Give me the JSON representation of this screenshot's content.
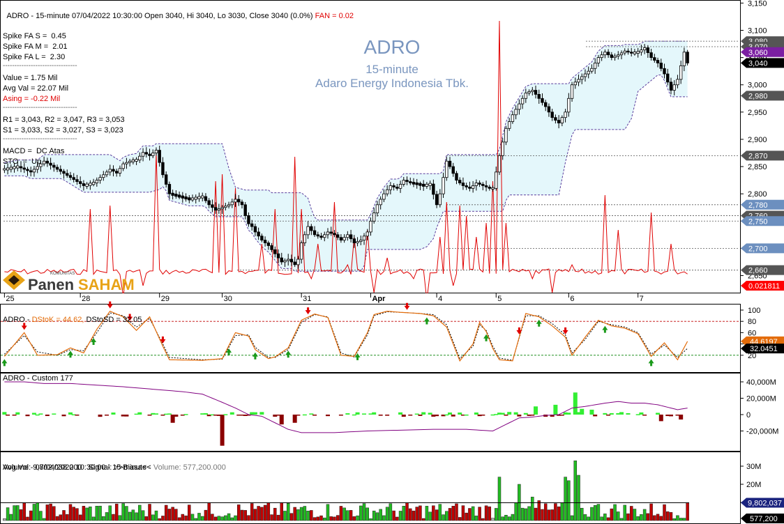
{
  "header": {
    "text": "ADRO - 15-minute 07/04/2022 10:30:00 Open 3040, Hi 3040, Lo 3030, Close 3040 (0.0%)",
    "fan": "FAN = 0.02"
  },
  "info": {
    "spike_s": "Spike FA S =  0.45",
    "spike_m": "Spike FA M =  2.01",
    "spike_l": "Spike FA L =  2.30",
    "separator": "--------------------------------",
    "value": "Value = 1.75 Mil",
    "avg_val": "Avg Val = 22.07 Mil",
    "asing": "Asing = -0.22 Mil",
    "r_levels": "R1 = 3,043, R2 = 3,047, R3 = 3,053",
    "s_levels": "S1 = 3,033, S2 = 3,027, S3 = 3,023",
    "macd": "MACD =  DC Atas",
    "sto": "STO  =  Up"
  },
  "watermark": {
    "ticker": "ADRO",
    "interval": "15-minute",
    "company": "Adaro Energy Indonesia Tbk."
  },
  "logo": {
    "small": "KOMUNITAS",
    "word1": "Panen",
    "word2": "SAHAM"
  },
  "colors": {
    "up_candle": "#ffffff",
    "down_candle": "#000000",
    "channel_fill": "#e4f7fb",
    "channel_line": "#5a3c9c",
    "fan_line": "#e00000",
    "stoch_k": "#e36c0a",
    "flow_line": "#800080",
    "vol_up": "#22bb22",
    "vol_down": "#c00000",
    "vol_neutral": "#b4b4b4",
    "level_label_bg": "#000000",
    "level_label_purple": "#7b1fa2",
    "level_label_blue": "#6c8fbf",
    "level_label_grey": "#555555"
  },
  "price_panel": {
    "axis_ticks": [
      "3,150",
      "3,100",
      "3,050",
      "3,000",
      "2,950",
      "2,900",
      "2,850",
      "2,800",
      "2,750",
      "2,700",
      "2,650"
    ],
    "level_labels": [
      {
        "text": "3,080",
        "style": "grey"
      },
      {
        "text": "3,070",
        "style": "grey"
      },
      {
        "text": "3,060",
        "style": "purple"
      },
      {
        "text": "3,040",
        "style": "black"
      },
      {
        "text": "2,980",
        "style": "grey"
      },
      {
        "text": "2,870",
        "style": "grey"
      },
      {
        "text": "2,780",
        "style": "blue"
      },
      {
        "text": "2,760",
        "style": "grey"
      },
      {
        "text": "2,750",
        "style": "blue"
      },
      {
        "text": "2,700",
        "style": "blue"
      },
      {
        "text": "2,660",
        "style": "grey"
      },
      {
        "text": "0.021811",
        "style": "red"
      }
    ]
  },
  "date_axis": [
    "25",
    "28",
    "29",
    "30",
    "31",
    "Apr",
    "4",
    "5",
    "6",
    "7"
  ],
  "stoch_panel": {
    "title_prefix": "ADRO - ",
    "title_k": "DStoK = 44.62,",
    "title_d": "DStoSD = 32.05",
    "axis_ticks": [
      "100",
      "80",
      "60",
      "40",
      "20"
    ],
    "k_label": "44.6197",
    "d_label": "32.0451"
  },
  "custom_panel": {
    "title": "ADRO - Custom 177",
    "axis_ticks": [
      "40,000M",
      "20,000M",
      "0",
      "-20,000M"
    ]
  },
  "volume_panel": {
    "title1": "Volume - 07/04/2022 10:30:00 - 15-minute",
    "title_vol": " - Volume: 577,200.000",
    "title2": "Avg.Vol: 9,802,038.000   Signal: >>Biasa<<",
    "axis_ticks": [
      "30M",
      "20M",
      "10M"
    ],
    "avg_label": "9,802,037",
    "vol_label": "577,200"
  },
  "chart_data": {
    "type": "candlestick",
    "title": "ADRO 15-minute",
    "ylim": [
      2645,
      3160
    ],
    "days": [
      "25",
      "28",
      "29",
      "30",
      "31",
      "Apr",
      "4",
      "5",
      "6",
      "7"
    ],
    "close_path": [
      [
        0,
        2845
      ],
      [
        4,
        2850
      ],
      [
        8,
        2840
      ],
      [
        12,
        2860
      ],
      [
        16,
        2845
      ],
      [
        20,
        2830
      ],
      [
        24,
        2815
      ],
      [
        27,
        2820
      ],
      [
        30,
        2835
      ],
      [
        32,
        2845
      ],
      [
        34,
        2838
      ],
      [
        36,
        2855
      ],
      [
        38,
        2860
      ],
      [
        40,
        2862
      ],
      [
        42,
        2876
      ],
      [
        44,
        2870
      ],
      [
        46,
        2880
      ],
      [
        48,
        2835
      ],
      [
        50,
        2800
      ],
      [
        53,
        2795
      ],
      [
        56,
        2790
      ],
      [
        60,
        2795
      ],
      [
        62,
        2780
      ],
      [
        64,
        2770
      ],
      [
        66,
        2775
      ],
      [
        68,
        2780
      ],
      [
        70,
        2790
      ],
      [
        72,
        2780
      ],
      [
        73,
        2760
      ],
      [
        74,
        2745
      ],
      [
        75,
        2740
      ],
      [
        76,
        2730
      ],
      [
        78,
        2715
      ],
      [
        80,
        2705
      ],
      [
        82,
        2690
      ],
      [
        84,
        2675
      ],
      [
        86,
        2680
      ],
      [
        88,
        2670
      ],
      [
        89,
        2680
      ],
      [
        90,
        2710
      ],
      [
        92,
        2740
      ],
      [
        94,
        2725
      ],
      [
        96,
        2720
      ],
      [
        98,
        2730
      ],
      [
        100,
        2725
      ],
      [
        102,
        2715
      ],
      [
        104,
        2725
      ],
      [
        106,
        2710
      ],
      [
        108,
        2715
      ],
      [
        110,
        2730
      ],
      [
        111,
        2750
      ],
      [
        113,
        2780
      ],
      [
        115,
        2800
      ],
      [
        117,
        2815
      ],
      [
        119,
        2810
      ],
      [
        121,
        2825
      ],
      [
        123,
        2820
      ],
      [
        125,
        2818
      ],
      [
        127,
        2815
      ],
      [
        129,
        2818
      ],
      [
        131,
        2780
      ],
      [
        132,
        2800
      ],
      [
        133,
        2830
      ],
      [
        134,
        2860
      ],
      [
        135,
        2850
      ],
      [
        137,
        2825
      ],
      [
        139,
        2815
      ],
      [
        141,
        2810
      ],
      [
        143,
        2820
      ],
      [
        145,
        2815
      ],
      [
        147,
        2810
      ],
      [
        148,
        2810
      ],
      [
        149,
        2840
      ],
      [
        150,
        2870
      ],
      [
        152,
        2920
      ],
      [
        154,
        2945
      ],
      [
        156,
        2965
      ],
      [
        158,
        2985
      ],
      [
        160,
        2990
      ],
      [
        162,
        2975
      ],
      [
        164,
        2960
      ],
      [
        166,
        2940
      ],
      [
        168,
        2930
      ],
      [
        170,
        2950
      ],
      [
        172,
        3000
      ],
      [
        174,
        3010
      ],
      [
        176,
        3020
      ],
      [
        178,
        3030
      ],
      [
        180,
        3050
      ],
      [
        182,
        3060
      ],
      [
        184,
        3050
      ],
      [
        186,
        3055
      ],
      [
        188,
        3062
      ],
      [
        190,
        3058
      ],
      [
        192,
        3060
      ],
      [
        194,
        3068
      ],
      [
        196,
        3050
      ],
      [
        198,
        3040
      ],
      [
        200,
        3020
      ],
      [
        202,
        2990
      ],
      [
        204,
        3010
      ],
      [
        206,
        3060
      ],
      [
        207,
        3040
      ]
    ],
    "stoch_k_path": [
      [
        0,
        18
      ],
      [
        6,
        60
      ],
      [
        10,
        20
      ],
      [
        16,
        21
      ],
      [
        20,
        33
      ],
      [
        24,
        24
      ],
      [
        28,
        66
      ],
      [
        32,
        98
      ],
      [
        36,
        88
      ],
      [
        40,
        64
      ],
      [
        44,
        88
      ],
      [
        48,
        36
      ],
      [
        50,
        12
      ],
      [
        60,
        11
      ],
      [
        66,
        14
      ],
      [
        70,
        60
      ],
      [
        74,
        54
      ],
      [
        76,
        30
      ],
      [
        80,
        14
      ],
      [
        82,
        17
      ],
      [
        86,
        33
      ],
      [
        90,
        82
      ],
      [
        94,
        93
      ],
      [
        98,
        87
      ],
      [
        102,
        20
      ],
      [
        106,
        18
      ],
      [
        110,
        60
      ],
      [
        112,
        92
      ],
      [
        116,
        98
      ],
      [
        120,
        96
      ],
      [
        126,
        94
      ],
      [
        130,
        90
      ],
      [
        134,
        70
      ],
      [
        138,
        10
      ],
      [
        142,
        40
      ],
      [
        144,
        78
      ],
      [
        146,
        62
      ],
      [
        148,
        32
      ],
      [
        150,
        12
      ],
      [
        154,
        10
      ],
      [
        158,
        94
      ],
      [
        162,
        88
      ],
      [
        166,
        72
      ],
      [
        170,
        52
      ],
      [
        172,
        20
      ],
      [
        176,
        52
      ],
      [
        180,
        82
      ],
      [
        184,
        72
      ],
      [
        188,
        68
      ],
      [
        192,
        58
      ],
      [
        196,
        18
      ],
      [
        200,
        42
      ],
      [
        204,
        12
      ],
      [
        207,
        44.6
      ]
    ],
    "stoch_d_path": [
      [
        0,
        22
      ],
      [
        6,
        55
      ],
      [
        10,
        26
      ],
      [
        16,
        20
      ],
      [
        20,
        30
      ],
      [
        24,
        28
      ],
      [
        28,
        60
      ],
      [
        32,
        95
      ],
      [
        36,
        90
      ],
      [
        40,
        70
      ],
      [
        44,
        85
      ],
      [
        48,
        40
      ],
      [
        50,
        16
      ],
      [
        60,
        12
      ],
      [
        66,
        13
      ],
      [
        70,
        55
      ],
      [
        74,
        56
      ],
      [
        76,
        34
      ],
      [
        80,
        16
      ],
      [
        82,
        16
      ],
      [
        86,
        30
      ],
      [
        90,
        78
      ],
      [
        94,
        92
      ],
      [
        98,
        88
      ],
      [
        102,
        24
      ],
      [
        106,
        17
      ],
      [
        110,
        56
      ],
      [
        112,
        90
      ],
      [
        116,
        97
      ],
      [
        120,
        96
      ],
      [
        126,
        94
      ],
      [
        130,
        92
      ],
      [
        134,
        74
      ],
      [
        138,
        14
      ],
      [
        142,
        36
      ],
      [
        144,
        74
      ],
      [
        146,
        64
      ],
      [
        148,
        36
      ],
      [
        150,
        15
      ],
      [
        154,
        11
      ],
      [
        158,
        90
      ],
      [
        162,
        90
      ],
      [
        166,
        76
      ],
      [
        170,
        56
      ],
      [
        172,
        24
      ],
      [
        176,
        48
      ],
      [
        180,
        80
      ],
      [
        184,
        74
      ],
      [
        188,
        70
      ],
      [
        192,
        60
      ],
      [
        196,
        22
      ],
      [
        200,
        38
      ],
      [
        204,
        16
      ],
      [
        207,
        32.0
      ]
    ],
    "flow_line_path": [
      [
        0,
        40
      ],
      [
        6,
        40
      ],
      [
        12,
        38
      ],
      [
        20,
        38
      ],
      [
        28,
        36
      ],
      [
        36,
        34
      ],
      [
        42,
        32
      ],
      [
        48,
        30
      ],
      [
        54,
        28
      ],
      [
        60,
        25
      ],
      [
        66,
        15
      ],
      [
        70,
        8
      ],
      [
        74,
        0
      ],
      [
        78,
        -2
      ],
      [
        82,
        -10
      ],
      [
        86,
        -18
      ],
      [
        90,
        -22
      ],
      [
        100,
        -22
      ],
      [
        110,
        -20
      ],
      [
        120,
        -19
      ],
      [
        130,
        -18
      ],
      [
        140,
        -18
      ],
      [
        148,
        -20
      ],
      [
        152,
        -12
      ],
      [
        156,
        -4
      ],
      [
        160,
        -3
      ],
      [
        164,
        -1
      ],
      [
        168,
        0
      ],
      [
        172,
        8
      ],
      [
        176,
        10
      ],
      [
        182,
        14
      ],
      [
        186,
        16
      ],
      [
        190,
        14
      ],
      [
        194,
        14
      ],
      [
        198,
        12
      ],
      [
        202,
        8
      ],
      [
        204,
        6
      ],
      [
        207,
        8
      ]
    ],
    "volume_avg_M": 9.8,
    "last_volume_M": 0.577
  }
}
